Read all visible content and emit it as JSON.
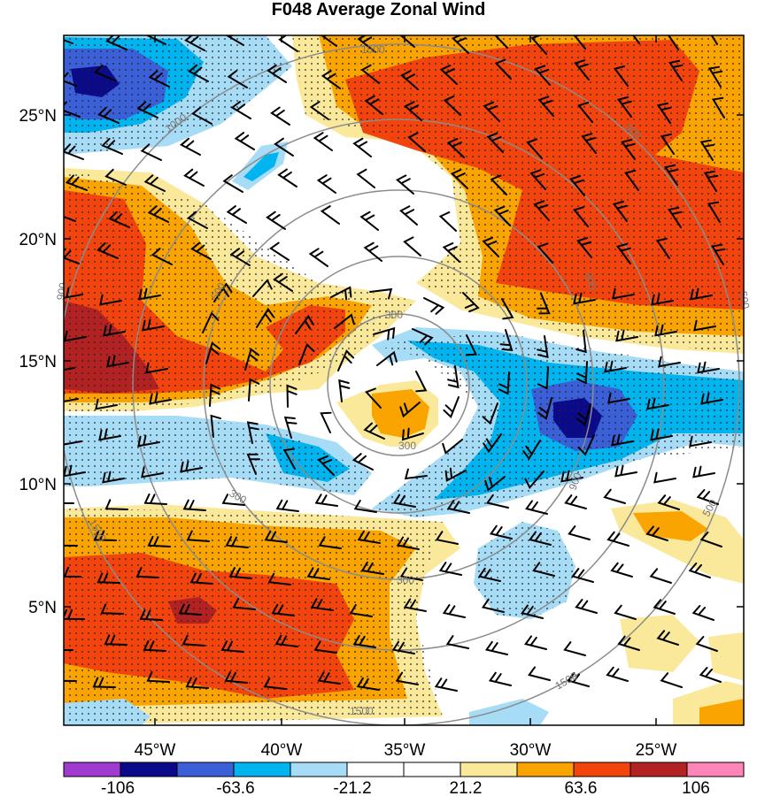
{
  "title": "F048 Average Zonal Wind",
  "lat_labels": [
    "25°N",
    "20°N",
    "15°N",
    "10°N",
    "5°N"
  ],
  "lon_labels": [
    "45°W",
    "40°W",
    "35°W",
    "30°W",
    "25°W"
  ],
  "ring_labels": [
    "1500",
    "1500",
    "1500",
    "1500",
    "1000",
    "900",
    "500",
    "900",
    "300",
    "300",
    "300",
    "300",
    "900",
    "500",
    "500",
    "900",
    "1500",
    "1500"
  ],
  "colorbar": {
    "colors": [
      "#a13bd0",
      "#0a0a8a",
      "#3a5fd6",
      "#00b4ef",
      "#a6dcf6",
      "#ffffff",
      "#ffffff",
      "#fbe99b",
      "#f9a400",
      "#f2440c",
      "#b22222",
      "#fe85b8"
    ],
    "labels": [
      "-106",
      "-63.6",
      "-21.2",
      "21.2",
      "63.6",
      "106"
    ]
  }
}
